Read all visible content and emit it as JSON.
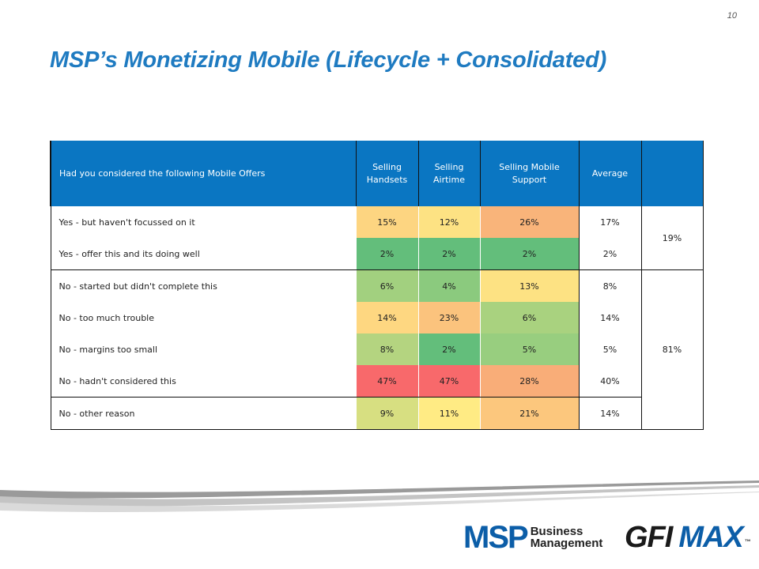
{
  "page_number": "10",
  "title": "MSP’s Monetizing Mobile (Lifecycle + Consolidated)",
  "table": {
    "headers": {
      "question": "Had you considered the following Mobile Offers",
      "handsets": "Selling Handsets",
      "airtime": "Selling Airtime",
      "support": "Selling Mobile Support",
      "average": "Average",
      "group": ""
    },
    "rows": [
      {
        "label": "Yes - but haven't focussed on it",
        "handsets": "15%",
        "airtime": "12%",
        "support": "26%",
        "average": "17%"
      },
      {
        "label": "Yes - offer this and its doing well",
        "handsets": "2%",
        "airtime": "2%",
        "support": "2%",
        "average": "2%"
      },
      {
        "label": "No - started but didn't complete this",
        "handsets": "6%",
        "airtime": "4%",
        "support": "13%",
        "average": "8%"
      },
      {
        "label": "No - too much trouble",
        "handsets": "14%",
        "airtime": "23%",
        "support": "6%",
        "average": "14%"
      },
      {
        "label": "No - margins too small",
        "handsets": "8%",
        "airtime": "2%",
        "support": "5%",
        "average": "5%"
      },
      {
        "label": "No - hadn't considered this",
        "handsets": "47%",
        "airtime": "47%",
        "support": "28%",
        "average": "40%"
      },
      {
        "label": "No - other reason",
        "handsets": "9%",
        "airtime": "11%",
        "support": "21%",
        "average": "14%"
      }
    ],
    "groups": {
      "yes_total": "19%",
      "no_total": "81%"
    },
    "cell_colors": {
      "r0": [
        "#fdd581",
        "#fde283",
        "#f9b47a"
      ],
      "r1": [
        "#63be7b",
        "#63be7b",
        "#63be7b"
      ],
      "r2": [
        "#a2d07f",
        "#8bca7e",
        "#fde283"
      ],
      "r3": [
        "#fed781",
        "#fbc37d",
        "#a9d27f"
      ],
      "r4": [
        "#b4d480",
        "#63be7b",
        "#98ce7f"
      ],
      "r5": [
        "#f8696b",
        "#f8696b",
        "#f9ad78"
      ],
      "r6": [
        "#d7df81",
        "#ffeb84",
        "#fcc77d"
      ]
    },
    "header_color": "#0a76c2"
  },
  "logos": {
    "msp_big": "MSP",
    "msp_line1": "Business",
    "msp_line2": "Management",
    "gfi": "GFI",
    "max": "MAX",
    "tm": "™"
  }
}
